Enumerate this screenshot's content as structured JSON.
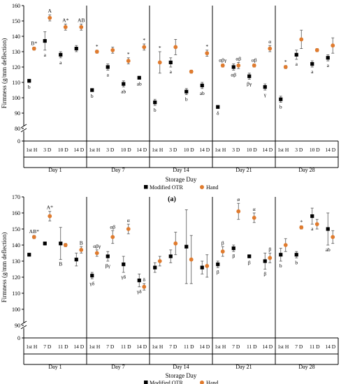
{
  "colors": {
    "otr": "#000000",
    "hand": "#e07b2e",
    "axis": "#000000"
  },
  "chart_data": [
    {
      "type": "scatter",
      "panel_label": "(a)",
      "ylabel": "Firmness (g/mm deflection)",
      "xlabel": "Storage Day",
      "ylim": [
        0,
        160
      ],
      "yticks": [
        0,
        80,
        90,
        100,
        110,
        120,
        130,
        140,
        150,
        160
      ],
      "axis_break": true,
      "grid": false,
      "legend_position": "bottom",
      "groups": [
        "Day 1",
        "Day 7",
        "Day 14",
        "Day 21",
        "Day 28"
      ],
      "tick_labels": [
        [
          "1st H",
          "3 D",
          "10 D",
          "14 D"
        ],
        [
          "1st H",
          "3 D",
          "10 D",
          "14 D"
        ],
        [
          "1st H",
          "3 D",
          "10 D",
          "14 D"
        ],
        [
          "1st H",
          "3 D",
          "10 D",
          "14 D"
        ],
        [
          "1st H",
          "3 D",
          "10 D",
          "14 D"
        ]
      ],
      "series": [
        {
          "name": "Modified OTR",
          "values": [
            [
              111,
              137,
              128,
              132
            ],
            [
              105,
              120,
              109,
              113
            ],
            [
              97,
              123,
              104,
              108
            ],
            [
              94,
              120,
              114,
              107
            ],
            [
              99,
              128,
              122,
              126
            ]
          ],
          "errors": [
            [
              1,
              6,
              2,
              2
            ],
            [
              1,
              2,
              2,
              1
            ],
            [
              2,
              3,
              2,
              2
            ],
            [
              1,
              2,
              2,
              2
            ],
            [
              2,
              3,
              2,
              2
            ]
          ],
          "labels": [
            [
              "b",
              "a",
              "a",
              ""
            ],
            [
              "b",
              "a",
              "ab",
              "ab"
            ],
            [
              "b",
              "a",
              "b",
              "ab"
            ],
            [
              "δ",
              "αβ",
              "βγ",
              "γ"
            ],
            [
              "b",
              "a",
              "a",
              "a"
            ]
          ]
        },
        {
          "name": "Hand",
          "values": [
            [
              132,
              152,
              146,
              146
            ],
            [
              130,
              131,
              124,
              133
            ],
            [
              123,
              133,
              117,
              129
            ],
            [
              121,
              121,
              121,
              132
            ],
            [
              120,
              138,
              131,
              134
            ]
          ],
          "errors": [
            [
              1,
              2,
              2,
              2
            ],
            [
              1,
              2,
              2,
              2
            ],
            [
              7,
              5,
              1,
              2
            ],
            [
              1,
              2,
              1,
              2
            ],
            [
              1,
              6,
              1,
              5
            ]
          ],
          "labels": [
            [
              "B*",
              "A",
              "A*",
              "AB"
            ],
            [
              "*",
              "",
              "*",
              "*"
            ],
            [
              "*",
              "",
              "",
              "*"
            ],
            [
              "αβγ",
              "αβ",
              "αβ",
              "α"
            ],
            [
              "*",
              "",
              "",
              ""
            ]
          ]
        }
      ]
    },
    {
      "type": "scatter",
      "panel_label": "(b)",
      "ylabel": "Firmness (g/mm deflection)",
      "xlabel": "Storage Day",
      "ylim": [
        0,
        170
      ],
      "yticks": [
        0,
        90,
        100,
        110,
        120,
        130,
        140,
        150,
        160,
        170
      ],
      "axis_break": true,
      "grid": false,
      "legend_position": "bottom",
      "groups": [
        "Day 1",
        "Day 7",
        "Day 14",
        "Day 21",
        "Day 28"
      ],
      "tick_labels": [
        [
          "1st H",
          "7 D",
          "11 D",
          "14 D"
        ],
        [
          "1st H",
          "7 D",
          "11 D",
          "14 D"
        ],
        [
          "1st H",
          "7 D",
          "11 D",
          "14 D"
        ],
        [
          "1st H",
          "7 D",
          "11 D",
          "14 D"
        ],
        [
          "1st H",
          "7 D",
          "11 D",
          "14 D"
        ]
      ],
      "series": [
        {
          "name": "Modified OTR",
          "values": [
            [
              134,
              141,
              141,
              131
            ],
            [
              121,
              133,
              128,
              118
            ],
            [
              126,
              133,
              139,
              126
            ],
            [
              128,
              138,
              133,
              130
            ],
            [
              134,
              134,
              158,
              150
            ]
          ],
          "errors": [
            [
              1,
              1,
              10,
              4
            ],
            [
              2,
              3,
              5,
              4
            ],
            [
              3,
              4,
              23,
              4
            ],
            [
              2,
              2,
              1,
              5
            ],
            [
              4,
              2,
              5,
              10
            ]
          ],
          "labels": [
            [
              "",
              "",
              "B",
              ""
            ],
            [
              "γδ",
              "βγ",
              "γδ",
              "γδ"
            ],
            [
              "",
              "",
              "",
              ""
            ],
            [
              "β",
              "β",
              "β",
              "β"
            ],
            [
              "b",
              "b",
              "a",
              "ab"
            ]
          ]
        },
        {
          "name": "Hand",
          "values": [
            [
              145,
              158,
              140,
              137
            ],
            [
              135,
              145,
              150,
              114
            ],
            [
              130,
              141,
              131,
              127
            ],
            [
              136,
              161,
              157,
              132
            ],
            [
              140,
              151,
              153,
              145
            ]
          ],
          "errors": [
            [
              1,
              3,
              1,
              2
            ],
            [
              2,
              4,
              3,
              2
            ],
            [
              3,
              7,
              15,
              7
            ],
            [
              3,
              5,
              3,
              3
            ],
            [
              4,
              1,
              3,
              4
            ]
          ],
          "labels": [
            [
              "AB*",
              "A*",
              "",
              "B"
            ],
            [
              "αβγ",
              "αβ",
              "α",
              "δ"
            ],
            [
              "",
              "",
              "",
              ""
            ],
            [
              "β",
              "ø",
              "α",
              "β"
            ],
            [
              "",
              "*",
              "",
              ""
            ]
          ]
        }
      ]
    }
  ]
}
